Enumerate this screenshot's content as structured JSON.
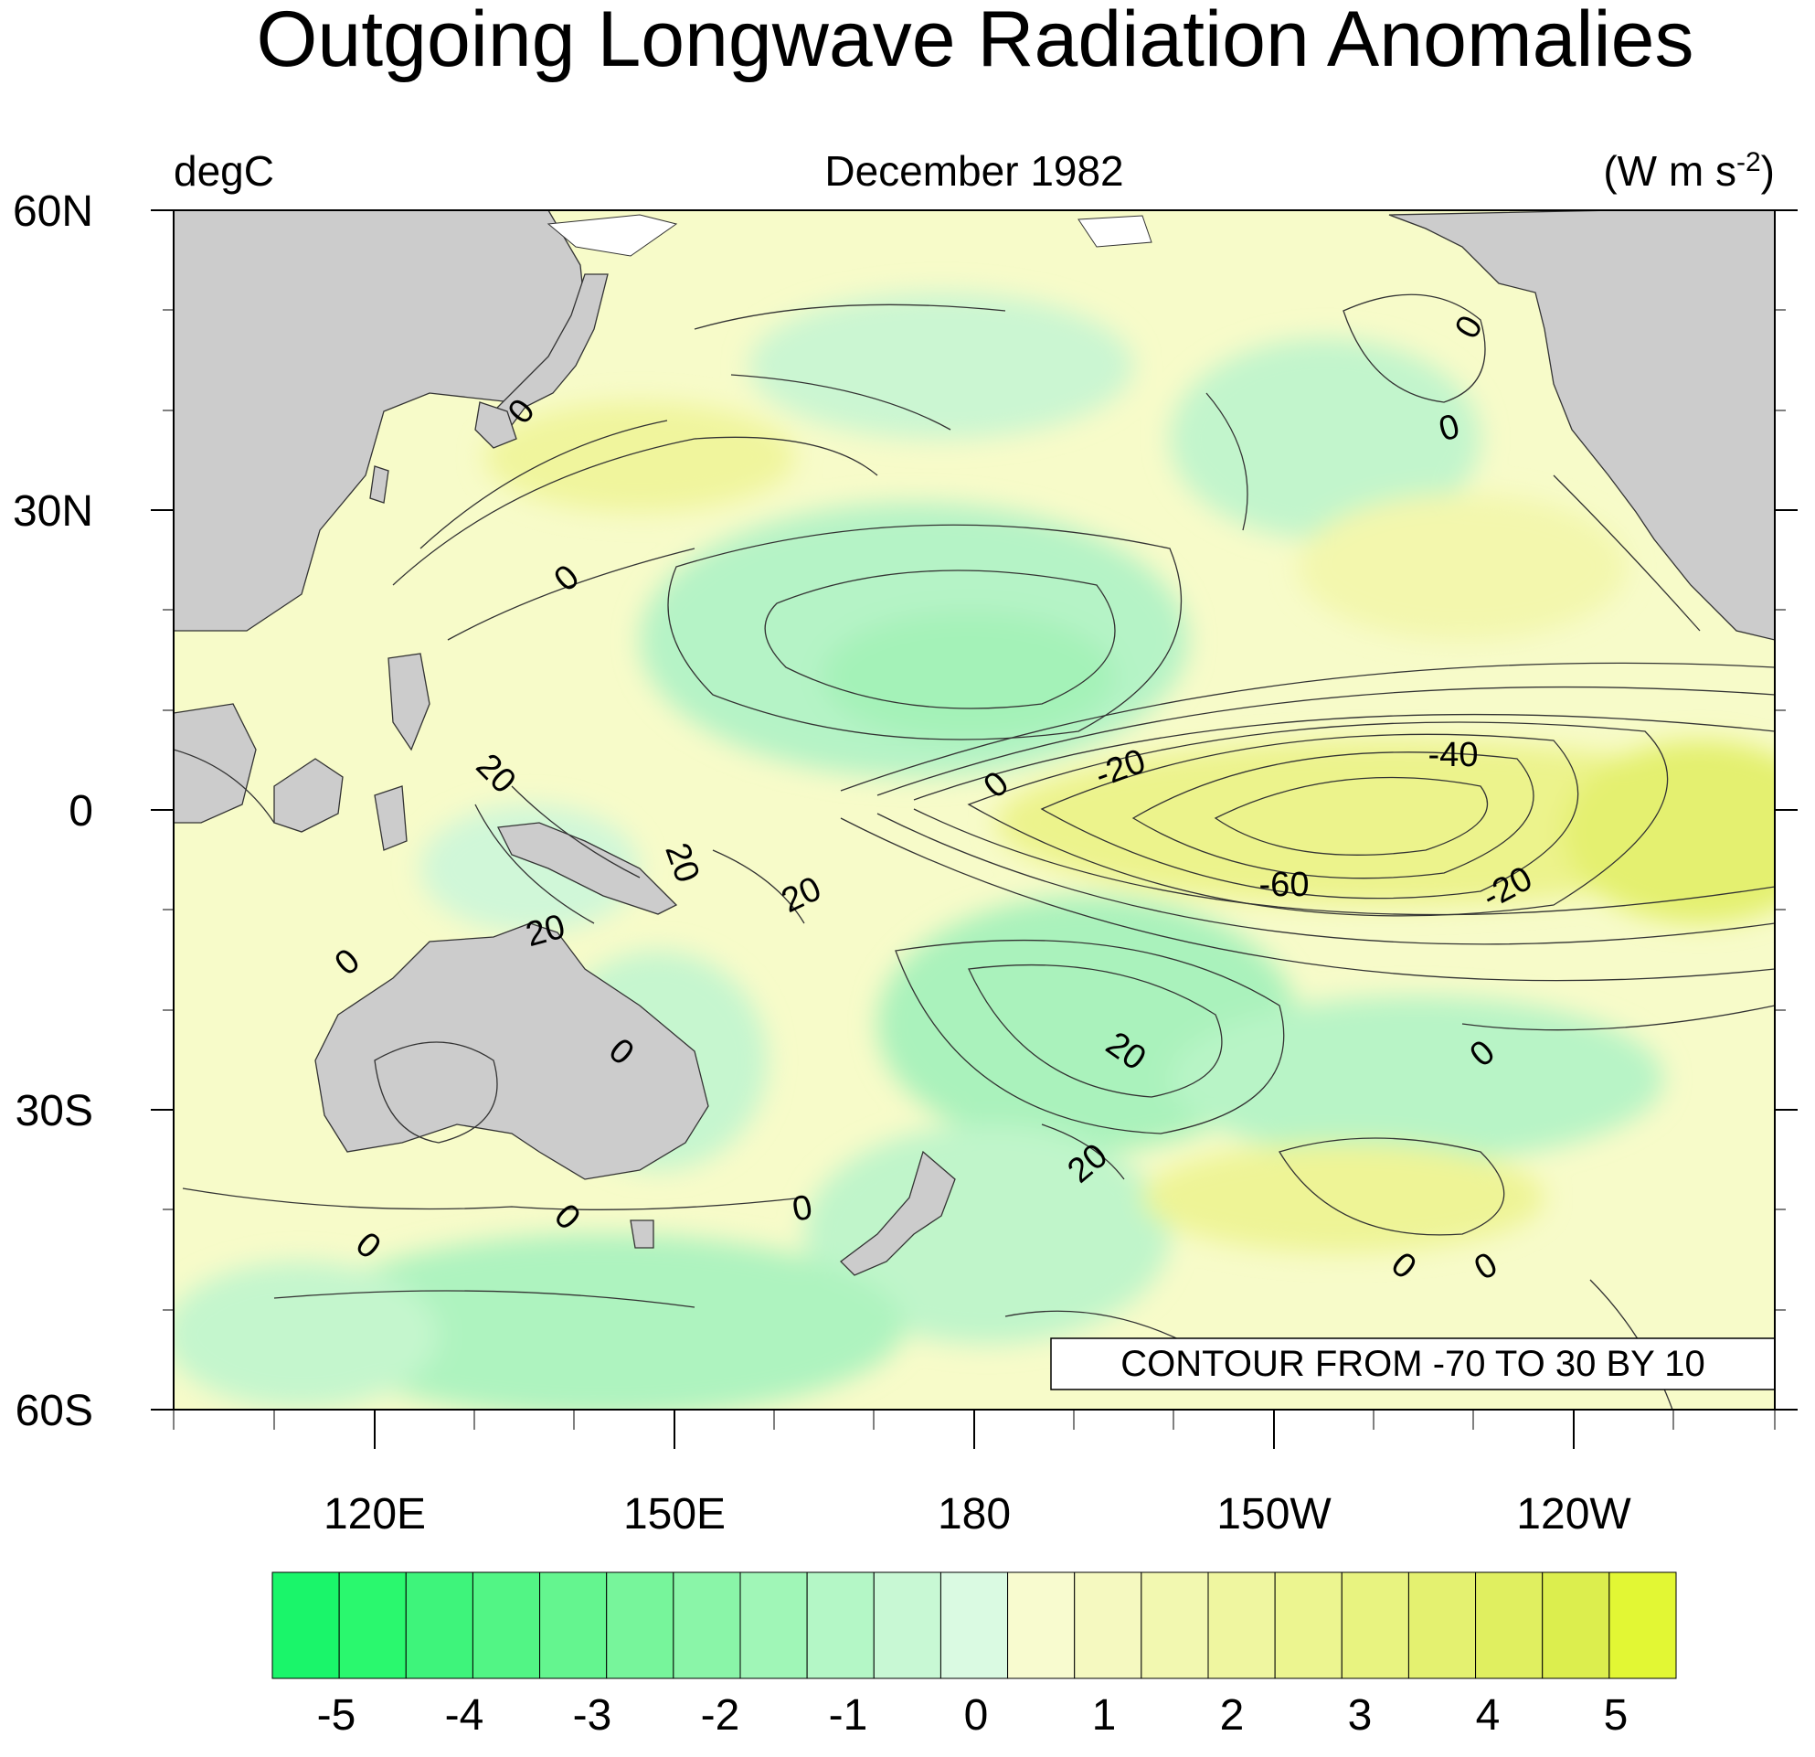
{
  "title": "Outgoing Longwave Radiation Anomalies",
  "left_label": "degC",
  "center_label": "December 1982",
  "units": {
    "main": "(W m s",
    "sup": "-2",
    "close": ")"
  },
  "lat_labels": [
    "60N",
    "30N",
    "0",
    "30S",
    "60S"
  ],
  "lon_labels": [
    "120E",
    "150E",
    "180",
    "150W",
    "120W"
  ],
  "contour_info": "CONTOUR FROM -70 TO 30 BY 10",
  "contour_labels": [
    "0",
    "0",
    "0",
    "0",
    "20",
    "20",
    "0",
    "-20",
    "-40",
    "20",
    "-60",
    "-20",
    "20",
    "0",
    "20",
    "0",
    "0",
    "20",
    "0",
    "0",
    "0",
    "0",
    "0"
  ],
  "colorbar": {
    "colors": [
      "#1af56a",
      "#2af86e",
      "#3ef47b",
      "#52f585",
      "#64f58f",
      "#77f59b",
      "#8af5a8",
      "#a0f6b7",
      "#b4f7c6",
      "#c8f8d4",
      "#dafae2",
      "#f8fbcf",
      "#f5f9c0",
      "#f2f8b0",
      "#eff6a0",
      "#ecf590",
      "#e8f380",
      "#e4f170",
      "#e0ef60",
      "#dcee4e",
      "#e2f734"
    ],
    "tick_labels": [
      "-5",
      "-4",
      "-3",
      "-2",
      "-1",
      "0",
      "1",
      "2",
      "3",
      "4",
      "5"
    ]
  }
}
